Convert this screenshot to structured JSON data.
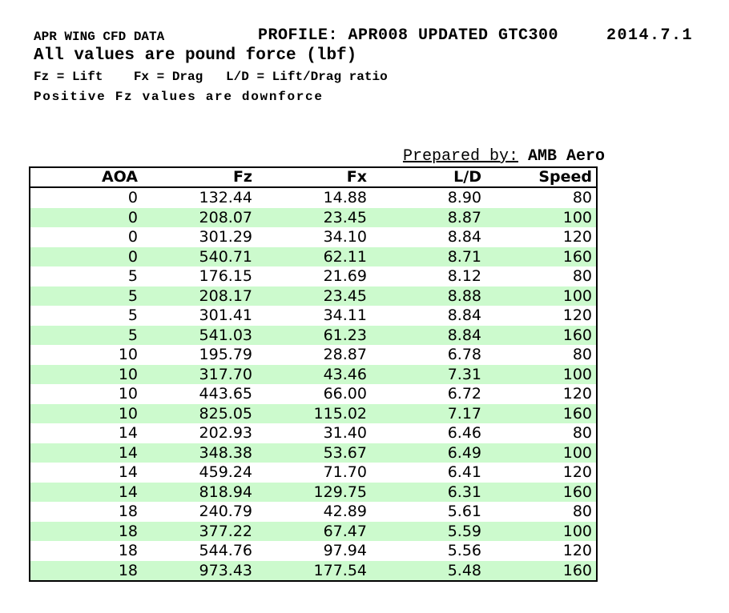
{
  "report": {
    "title": "APR WING CFD DATA",
    "profile": "PROFILE: APR008 UPDATED GTC300",
    "date": "2014.7.1",
    "units_note": "All values are pound force (lbf)",
    "legend": "Fz = Lift    Fx = Drag   L/D = Lift/Drag ratio",
    "downforce_note": "Positive Fz values are downforce",
    "prepared_by_label": "Prepared by:",
    "prepared_by_value": "AMB Aero"
  },
  "table": {
    "columns": [
      "AOA",
      "Fz",
      "Fx",
      "L/D",
      "Speed"
    ],
    "rows": [
      [
        "0",
        "132.44",
        "14.88",
        "8.90",
        "80"
      ],
      [
        "0",
        "208.07",
        "23.45",
        "8.87",
        "100"
      ],
      [
        "0",
        "301.29",
        "34.10",
        "8.84",
        "120"
      ],
      [
        "0",
        "540.71",
        "62.11",
        "8.71",
        "160"
      ],
      [
        "5",
        "176.15",
        "21.69",
        "8.12",
        "80"
      ],
      [
        "5",
        "208.17",
        "23.45",
        "8.88",
        "100"
      ],
      [
        "5",
        "301.41",
        "34.11",
        "8.84",
        "120"
      ],
      [
        "5",
        "541.03",
        "61.23",
        "8.84",
        "160"
      ],
      [
        "10",
        "195.79",
        "28.87",
        "6.78",
        "80"
      ],
      [
        "10",
        "317.70",
        "43.46",
        "7.31",
        "100"
      ],
      [
        "10",
        "443.65",
        "66.00",
        "6.72",
        "120"
      ],
      [
        "10",
        "825.05",
        "115.02",
        "7.17",
        "160"
      ],
      [
        "14",
        "202.93",
        "31.40",
        "6.46",
        "80"
      ],
      [
        "14",
        "348.38",
        "53.67",
        "6.49",
        "100"
      ],
      [
        "14",
        "459.24",
        "71.70",
        "6.41",
        "120"
      ],
      [
        "14",
        "818.94",
        "129.75",
        "6.31",
        "160"
      ],
      [
        "18",
        "240.79",
        "42.89",
        "5.61",
        "80"
      ],
      [
        "18",
        "377.22",
        "67.47",
        "5.59",
        "100"
      ],
      [
        "18",
        "544.76",
        "97.94",
        "5.56",
        "120"
      ],
      [
        "18",
        "973.43",
        "177.54",
        "5.48",
        "160"
      ]
    ]
  },
  "colors": {
    "row_alt": "#ccfacd",
    "text": "#000000",
    "border": "#000000"
  }
}
